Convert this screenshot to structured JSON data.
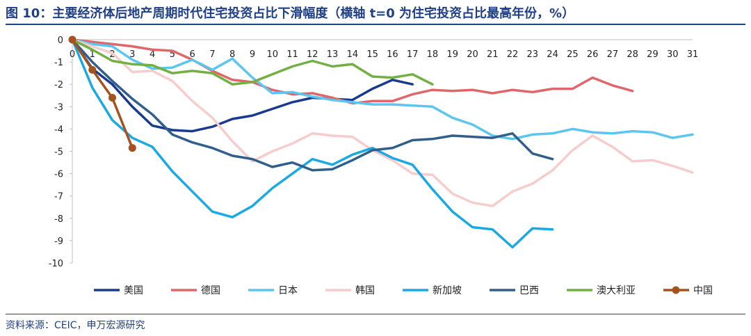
{
  "header": {
    "title": "图 10：主要经济体后地产周期时代住宅投资占比下滑幅度（横轴 t=0 为住宅投资占比最高年份，%）"
  },
  "footer": {
    "source": "资料来源：CEIC，申万宏源研究"
  },
  "chart_data": {
    "type": "line",
    "xlim": [
      0,
      31
    ],
    "ylim": [
      -10,
      0
    ],
    "x_ticks": [
      "0",
      "1",
      "2",
      "3",
      "4",
      "5",
      "6",
      "7",
      "8",
      "9",
      "10",
      "11",
      "12",
      "13",
      "14",
      "15",
      "16",
      "17",
      "18",
      "19",
      "20",
      "21",
      "22",
      "23",
      "24",
      "25",
      "26",
      "27",
      "28",
      "29",
      "30",
      "31"
    ],
    "y_ticks": [
      "0",
      "-1",
      "-2",
      "-3",
      "-4",
      "-5",
      "-6",
      "-7",
      "-8",
      "-9",
      "-10"
    ],
    "legend_position": "bottom",
    "series": [
      {
        "name": "美国",
        "color": "#1a3a8f",
        "values": [
          0,
          -1.3,
          -2.0,
          -3.0,
          -3.85,
          -4.05,
          -4.1,
          -3.9,
          -3.55,
          -3.4,
          -3.1,
          -2.8,
          -2.6,
          -2.65,
          -2.7,
          -2.2,
          -1.8,
          -2.0
        ]
      },
      {
        "name": "德国",
        "color": "#e0666a",
        "values": [
          0,
          -0.1,
          -0.2,
          -0.3,
          -0.45,
          -0.5,
          -0.9,
          -1.4,
          -1.8,
          -1.9,
          -2.25,
          -2.45,
          -2.4,
          -2.6,
          -2.85,
          -2.75,
          -2.75,
          -2.45,
          -2.25,
          -2.3,
          -2.25,
          -2.4,
          -2.25,
          -2.35,
          -2.2,
          -2.2,
          -1.7,
          -2.05,
          -2.3
        ]
      },
      {
        "name": "日本",
        "color": "#5bc6f0",
        "values": [
          0,
          -0.2,
          -0.3,
          -0.9,
          -1.3,
          -1.25,
          -0.9,
          -1.35,
          -0.85,
          -1.7,
          -2.4,
          -2.35,
          -2.55,
          -2.7,
          -2.8,
          -2.9,
          -2.9,
          -2.95,
          -3.0,
          -3.5,
          -3.8,
          -4.3,
          -4.45,
          -4.25,
          -4.2,
          -4.0,
          -4.15,
          -4.2,
          -4.1,
          -4.15,
          -4.4,
          -4.25
        ]
      },
      {
        "name": "韩国",
        "color": "#f7cccc",
        "values": [
          0,
          -0.3,
          -0.6,
          -1.45,
          -1.4,
          -1.85,
          -2.75,
          -3.5,
          -4.55,
          -5.45,
          -5.0,
          -4.65,
          -4.2,
          -4.3,
          -4.35,
          -4.95,
          -5.4,
          -6.0,
          -6.05,
          -6.9,
          -7.3,
          -7.45,
          -6.8,
          -6.45,
          -5.85,
          -4.95,
          -4.3,
          -4.8,
          -5.45,
          -5.4,
          -5.65,
          -5.95
        ]
      },
      {
        "name": "新加坡",
        "color": "#1aa9e3",
        "values": [
          0,
          -2.15,
          -3.6,
          -4.4,
          -4.8,
          -5.9,
          -6.8,
          -7.7,
          -7.95,
          -7.45,
          -6.65,
          -6.0,
          -5.35,
          -5.6,
          -5.15,
          -4.85,
          -5.3,
          -5.6,
          -6.7,
          -7.7,
          -8.4,
          -8.5,
          -9.3,
          -8.45,
          -8.5
        ]
      },
      {
        "name": "巴西",
        "color": "#2f5f8a",
        "values": [
          0,
          -1.0,
          -1.85,
          -2.65,
          -3.35,
          -4.25,
          -4.6,
          -4.85,
          -5.2,
          -5.35,
          -5.7,
          -5.5,
          -5.85,
          -5.8,
          -5.4,
          -4.95,
          -4.85,
          -4.5,
          -4.45,
          -4.3,
          -4.35,
          -4.4,
          -4.2,
          -5.1,
          -5.35
        ]
      },
      {
        "name": "澳大利亚",
        "color": "#72b043",
        "values": [
          0,
          -0.45,
          -0.95,
          -1.1,
          -1.15,
          -1.5,
          -1.4,
          -1.5,
          -2.0,
          -1.9,
          -1.55,
          -1.2,
          -0.95,
          -1.2,
          -1.1,
          -1.65,
          -1.7,
          -1.55,
          -2.0
        ]
      },
      {
        "name": "中国",
        "color": "#a4521e",
        "markers": true,
        "values": [
          0,
          -1.35,
          -2.6,
          -4.85
        ]
      }
    ]
  }
}
